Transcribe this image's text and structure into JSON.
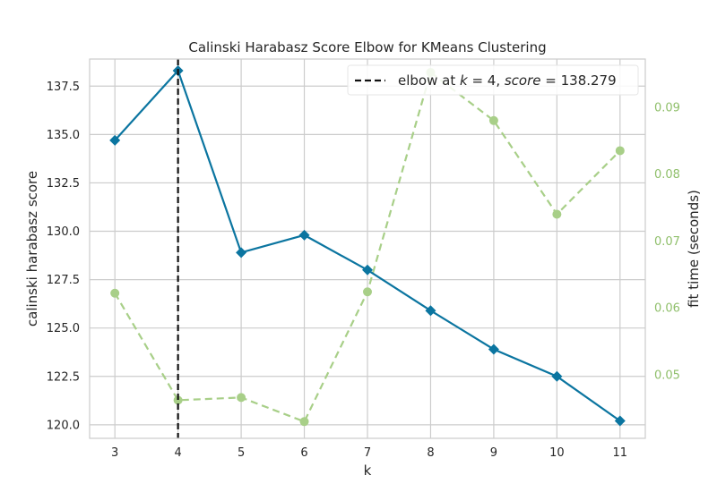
{
  "chart_data": {
    "type": "line",
    "title": "Calinski Harabasz Score Elbow for KMeans Clustering",
    "xlabel": "k",
    "ylabel": "calinski harabasz score",
    "y2label": "fit time (seconds)",
    "x": [
      3,
      4,
      5,
      6,
      7,
      8,
      9,
      10,
      11
    ],
    "xlim": [
      2.6,
      11.4
    ],
    "ylim": [
      119.3,
      138.9
    ],
    "y2lim": [
      0.0405,
      0.0972
    ],
    "x_ticks": [
      "3",
      "4",
      "5",
      "6",
      "7",
      "8",
      "9",
      "10",
      "11"
    ],
    "y_ticks": [
      "120.0",
      "122.5",
      "125.0",
      "127.5",
      "130.0",
      "132.5",
      "135.0",
      "137.5"
    ],
    "y_tick_values": [
      120.0,
      122.5,
      125.0,
      127.5,
      130.0,
      132.5,
      135.0,
      137.5
    ],
    "y2_ticks": [
      "0.05",
      "0.06",
      "0.07",
      "0.08",
      "0.09"
    ],
    "y2_tick_values": [
      0.05,
      0.06,
      0.07,
      0.08,
      0.09
    ],
    "grid": true,
    "series": [
      {
        "axis": "left",
        "marker": "diamond",
        "style": "solid",
        "color": "#0b75a0",
        "values": [
          134.7,
          138.3,
          128.9,
          129.8,
          128.0,
          125.9,
          123.9,
          122.5,
          120.2
        ]
      },
      {
        "axis": "right",
        "marker": "circle",
        "style": "dashed",
        "color": "#a8cf88",
        "values": [
          0.0622,
          0.0462,
          0.0466,
          0.043,
          0.0624,
          0.0952,
          0.088,
          0.074,
          0.0835
        ]
      }
    ],
    "elbow": {
      "k": 4,
      "score": 138.279,
      "legend_prefix": "elbow at ",
      "legend_k": "k",
      "legend_k_value": " = 4, ",
      "legend_score": "score",
      "legend_score_value": " = 138.279",
      "color": "#111111"
    },
    "legend_position": "top-right",
    "right_axis_color": "#8fbf6a"
  }
}
